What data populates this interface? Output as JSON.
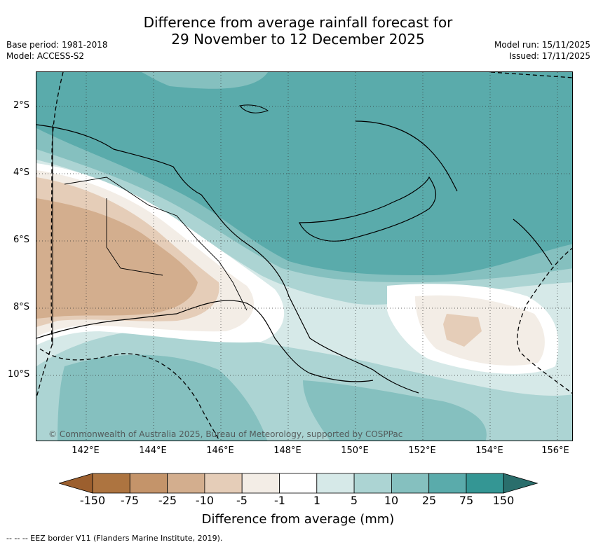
{
  "title": {
    "line1": "Difference from average rainfall forecast for",
    "line2": "29 November to 12 December 2025"
  },
  "meta": {
    "base_period": "Base period: 1981-2018",
    "model": "Model: ACCESS-S2",
    "model_run": "Model run: 15/11/2025",
    "issued": "Issued: 17/11/2025"
  },
  "map": {
    "lat_labels": [
      "2°S",
      "4°S",
      "6°S",
      "8°S",
      "10°S"
    ],
    "lon_labels": [
      "142°E",
      "144°E",
      "146°E",
      "148°E",
      "150°E",
      "152°E",
      "154°E",
      "156°E"
    ],
    "copyright": "© Commonwealth of Australia 2025, Bureau of Meteorology, supported by COSPPac"
  },
  "colorbar": {
    "title": "Difference from average (mm)",
    "labels": [
      "-150",
      "-75",
      "-25",
      "-10",
      "-5",
      "-1",
      "1",
      "5",
      "10",
      "25",
      "75",
      "150"
    ],
    "colors": [
      "#9c5f2e",
      "#ad7440",
      "#c4946a",
      "#d3ae8e",
      "#e5cdb8",
      "#f3ede6",
      "#ffffff",
      "#d6e9e8",
      "#acd4d3",
      "#85c0bf",
      "#5aabab",
      "#349694",
      "#2a6e6c"
    ]
  },
  "footer": "--  --  -- EEZ border V11 (Flanders Marine Institute, 2019)."
}
